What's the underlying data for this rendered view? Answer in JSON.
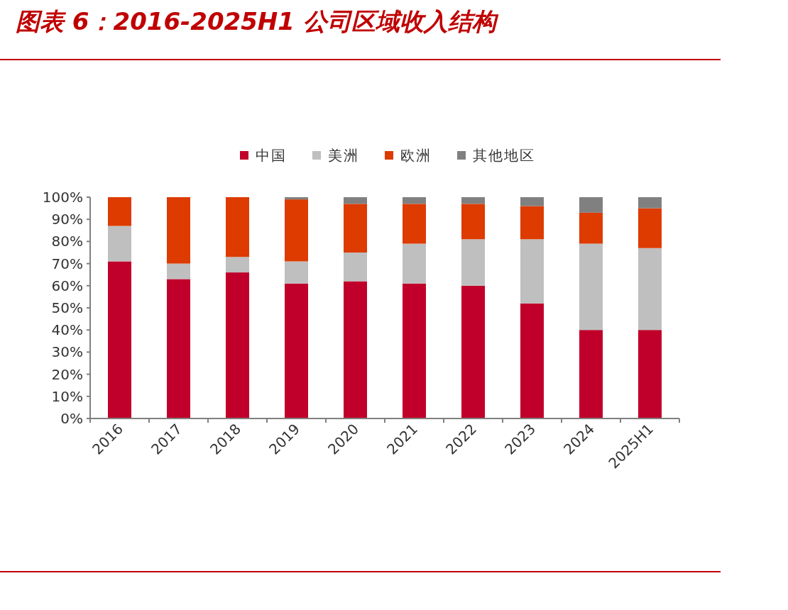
{
  "chart_data": {
    "type": "bar",
    "stacked": true,
    "title": "图表 6：2016-2025H1 公司区域收入结构",
    "categories": [
      "2016",
      "2017",
      "2018",
      "2019",
      "2020",
      "2021",
      "2022",
      "2023",
      "2024",
      "2025H1"
    ],
    "series": [
      {
        "name": "中国",
        "color": "#c0002a",
        "values": [
          71,
          63,
          66,
          61,
          62,
          61,
          60,
          52,
          40,
          40
        ]
      },
      {
        "name": "美洲",
        "color": "#bfbfbf",
        "values": [
          16,
          7,
          7,
          10,
          13,
          18,
          21,
          29,
          39,
          37
        ]
      },
      {
        "name": "欧洲",
        "color": "#dd3b00",
        "values": [
          13,
          30,
          27,
          28,
          22,
          18,
          16,
          15,
          14,
          18
        ]
      },
      {
        "name": "其他地区",
        "color": "#808080",
        "values": [
          0,
          0,
          0,
          1,
          3,
          3,
          3,
          4,
          7,
          5
        ]
      }
    ],
    "ylim": [
      0,
      100
    ],
    "yticks": [
      {
        "value": 0,
        "label": "0%"
      },
      {
        "value": 10,
        "label": "10%"
      },
      {
        "value": 20,
        "label": "20%"
      },
      {
        "value": 30,
        "label": "30%"
      },
      {
        "value": 40,
        "label": "40%"
      },
      {
        "value": 50,
        "label": "50%"
      },
      {
        "value": 60,
        "label": "60%"
      },
      {
        "value": 70,
        "label": "70%"
      },
      {
        "value": 80,
        "label": "80%"
      },
      {
        "value": 90,
        "label": "90%"
      },
      {
        "value": 100,
        "label": "100%"
      }
    ],
    "grid": false,
    "legend": "top"
  }
}
